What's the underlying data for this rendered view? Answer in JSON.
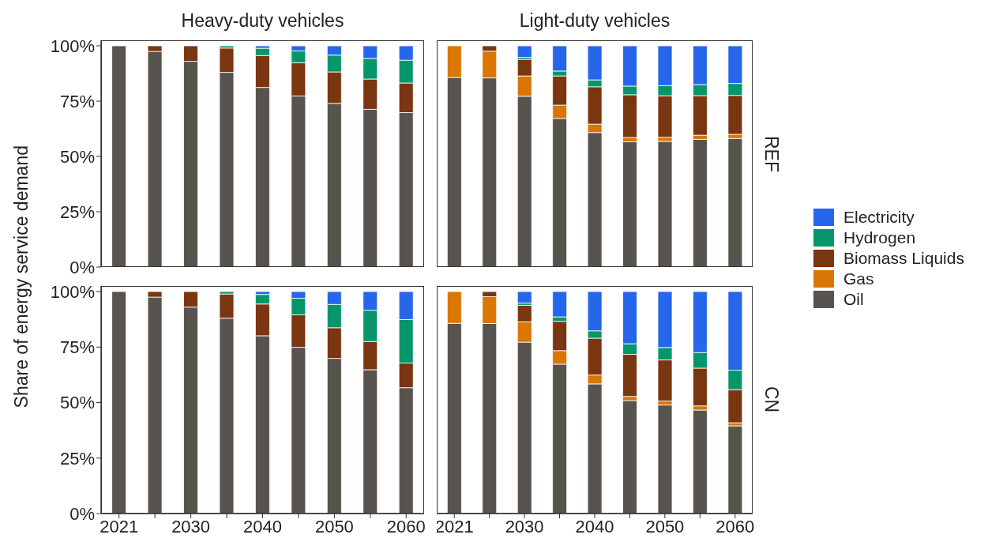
{
  "chart_data": [
    {
      "type": "bar",
      "stacked": true,
      "title": "Heavy-duty vehicles",
      "ylabel": "Share of energy service demand",
      "tick_labels": "y",
      "legend": "right",
      "categories": [
        "2021",
        null,
        "2030",
        null,
        "2040",
        null,
        "2050",
        null,
        "2060"
      ],
      "ylim": [
        0,
        102.5
      ],
      "yticks": [
        {
          "value": 0,
          "label": "0%"
        },
        {
          "value": 25,
          "label": "25%"
        },
        {
          "value": 50,
          "label": "50%"
        },
        {
          "value": 75,
          "label": "75%"
        },
        {
          "value": 100,
          "label": "100%"
        }
      ],
      "series": [
        {
          "name": "Oil",
          "color": "#57534e",
          "values": [
            100,
            97.5,
            93.0,
            88.0,
            81.2,
            77.3,
            74.0,
            71.3,
            69.8
          ]
        },
        {
          "name": "Biomass Liquids",
          "color": "#7a3511",
          "values": [
            0,
            2.5,
            7.0,
            11.0,
            14.4,
            15.0,
            14.2,
            13.7,
            13.4
          ]
        },
        {
          "name": "Hydrogen",
          "color": "#06966a",
          "values": [
            0,
            0,
            0,
            1.0,
            3.3,
            5.4,
            7.6,
            9.3,
            10.3
          ]
        },
        {
          "name": "Electricity",
          "color": "#2666ea",
          "values": [
            0,
            0,
            0,
            0,
            1.1,
            2.3,
            4.2,
            5.7,
            6.5
          ]
        }
      ]
    },
    {
      "type": "bar",
      "stacked": true,
      "title": "Light-duty vehicles",
      "annotations": [
        "REF"
      ],
      "tick_labels": false,
      "categories": [
        "2021",
        null,
        "2030",
        null,
        "2040",
        null,
        "2050",
        null,
        "2060"
      ],
      "ylim": [
        0,
        102.5
      ],
      "series": [
        {
          "name": "Oil",
          "color": "#57534e",
          "values": [
            85.7,
            85.5,
            77.2,
            67.2,
            60.8,
            56.6,
            56.8,
            57.7,
            58.1
          ]
        },
        {
          "name": "Gas",
          "color": "#d97604",
          "values": [
            14.3,
            12.1,
            9.2,
            6.0,
            3.8,
            2.0,
            1.9,
            1.9,
            1.9
          ]
        },
        {
          "name": "Biomass Liquids",
          "color": "#7a3511",
          "values": [
            0,
            2.4,
            7.5,
            13.2,
            16.9,
            19.3,
            18.7,
            17.9,
            17.6
          ]
        },
        {
          "name": "Hydrogen",
          "color": "#06966a",
          "values": [
            0,
            0,
            0.9,
            2.2,
            3.1,
            3.9,
            4.6,
            5.0,
            5.4
          ]
        },
        {
          "name": "Electricity",
          "color": "#2666ea",
          "values": [
            0,
            0,
            5.2,
            11.4,
            15.4,
            18.2,
            18.0,
            17.5,
            17.0
          ]
        }
      ]
    },
    {
      "type": "bar",
      "stacked": true,
      "categories": [
        "2021",
        null,
        "2030",
        null,
        "2040",
        null,
        "2050",
        null,
        "2060"
      ],
      "ylim": [
        0,
        102.5
      ],
      "yticks": [
        {
          "value": 0,
          "label": "0%"
        },
        {
          "value": 25,
          "label": "25%"
        },
        {
          "value": 50,
          "label": "50%"
        },
        {
          "value": 75,
          "label": "75%"
        },
        {
          "value": 100,
          "label": "100%"
        }
      ],
      "series": [
        {
          "name": "Oil",
          "color": "#57534e",
          "values": [
            100,
            97.5,
            93.0,
            88.0,
            80.1,
            74.9,
            69.9,
            64.8,
            56.7
          ]
        },
        {
          "name": "Biomass Liquids",
          "color": "#7a3511",
          "values": [
            0,
            2.5,
            7.0,
            10.9,
            14.3,
            14.6,
            13.8,
            12.7,
            11.1
          ]
        },
        {
          "name": "Hydrogen",
          "color": "#06966a",
          "values": [
            0,
            0,
            0,
            1.1,
            4.3,
            7.5,
            10.5,
            14.1,
            19.6
          ]
        },
        {
          "name": "Electricity",
          "color": "#2666ea",
          "values": [
            0,
            0,
            0,
            0,
            1.3,
            3.0,
            5.8,
            8.4,
            12.6
          ]
        }
      ]
    },
    {
      "type": "bar",
      "stacked": true,
      "annotations": [
        "CN"
      ],
      "tick_labels": "x",
      "categories": [
        "2021",
        null,
        "2030",
        null,
        "2040",
        null,
        "2050",
        null,
        "2060"
      ],
      "ylim": [
        0,
        102.5
      ],
      "series": [
        {
          "name": "Oil",
          "color": "#57534e",
          "values": [
            85.7,
            85.6,
            77.2,
            67.3,
            58.4,
            50.9,
            48.9,
            46.6,
            39.5
          ]
        },
        {
          "name": "Gas",
          "color": "#d97604",
          "values": [
            14.3,
            12.1,
            9.2,
            6.1,
            4.0,
            1.9,
            1.8,
            1.9,
            1.4
          ]
        },
        {
          "name": "Biomass Liquids",
          "color": "#7a3511",
          "values": [
            0,
            2.3,
            7.4,
            13.2,
            16.6,
            18.9,
            18.5,
            17.0,
            14.9
          ]
        },
        {
          "name": "Hydrogen",
          "color": "#06966a",
          "values": [
            0,
            0,
            1.0,
            2.0,
            3.3,
            4.8,
            5.6,
            7.0,
            8.8
          ]
        },
        {
          "name": "Electricity",
          "color": "#2666ea",
          "values": [
            0,
            0,
            5.2,
            11.4,
            17.7,
            23.5,
            25.2,
            27.5,
            35.4
          ]
        }
      ]
    }
  ]
}
